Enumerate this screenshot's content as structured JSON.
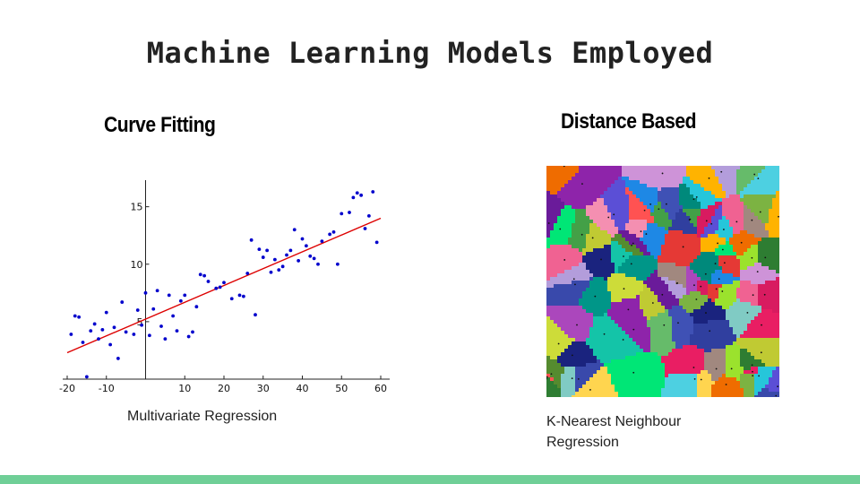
{
  "slide": {
    "title": "Machine Learning Models Employed",
    "left_heading": "Curve Fitting",
    "right_heading": "Distance Based",
    "left_caption": "Multivariate Regression",
    "right_caption": "K-Nearest Neighbour Regression",
    "footer_color": "#6fcf97"
  },
  "voronoi_image": {
    "style": "colorful voronoi tessellation with dot seeds"
  },
  "chart_data": {
    "type": "scatter",
    "xlim": [
      -20,
      60
    ],
    "ylim": [
      0,
      17
    ],
    "xticks": [
      -20,
      -10,
      10,
      20,
      30,
      40,
      50,
      60
    ],
    "yticks": [
      5,
      10,
      15
    ],
    "point_color": "#0000cc",
    "line_color": "#dd0000",
    "points": [
      [
        -19,
        3.9
      ],
      [
        -18,
        5.5
      ],
      [
        -17,
        5.4
      ],
      [
        -16,
        3.2
      ],
      [
        -15,
        0.2
      ],
      [
        -14,
        4.2
      ],
      [
        -13,
        4.8
      ],
      [
        -12,
        3.5
      ],
      [
        -11,
        4.3
      ],
      [
        -10,
        5.8
      ],
      [
        -9,
        3.0
      ],
      [
        -8,
        4.5
      ],
      [
        -7,
        1.8
      ],
      [
        -6,
        6.7
      ],
      [
        -5,
        4.1
      ],
      [
        -3,
        3.9
      ],
      [
        -2,
        6.0
      ],
      [
        -1,
        4.7
      ],
      [
        0,
        7.5
      ],
      [
        1,
        3.8
      ],
      [
        2,
        6.1
      ],
      [
        3,
        7.7
      ],
      [
        4,
        4.6
      ],
      [
        5,
        3.5
      ],
      [
        6,
        7.3
      ],
      [
        7,
        5.5
      ],
      [
        8,
        4.2
      ],
      [
        9,
        6.8
      ],
      [
        10,
        7.3
      ],
      [
        11,
        3.7
      ],
      [
        12,
        4.1
      ],
      [
        13,
        6.3
      ],
      [
        14,
        9.1
      ],
      [
        15,
        9.0
      ],
      [
        16,
        8.5
      ],
      [
        18,
        7.9
      ],
      [
        19,
        8.0
      ],
      [
        20,
        8.4
      ],
      [
        22,
        7.0
      ],
      [
        24,
        7.3
      ],
      [
        25,
        7.2
      ],
      [
        26,
        9.2
      ],
      [
        27,
        12.1
      ],
      [
        28,
        5.6
      ],
      [
        29,
        11.3
      ],
      [
        30,
        10.6
      ],
      [
        31,
        11.2
      ],
      [
        32,
        9.3
      ],
      [
        33,
        10.4
      ],
      [
        34,
        9.5
      ],
      [
        35,
        9.8
      ],
      [
        36,
        10.8
      ],
      [
        37,
        11.2
      ],
      [
        38,
        13.0
      ],
      [
        39,
        10.3
      ],
      [
        40,
        12.2
      ],
      [
        41,
        11.6
      ],
      [
        42,
        10.7
      ],
      [
        43,
        10.5
      ],
      [
        44,
        10.0
      ],
      [
        45,
        12.0
      ],
      [
        47,
        12.6
      ],
      [
        48,
        12.8
      ],
      [
        49,
        10.0
      ],
      [
        50,
        14.4
      ],
      [
        52,
        14.5
      ],
      [
        53,
        15.8
      ],
      [
        54,
        16.2
      ],
      [
        55,
        16.0
      ],
      [
        56,
        13.1
      ],
      [
        57,
        14.2
      ],
      [
        58,
        16.3
      ],
      [
        59,
        11.9
      ]
    ],
    "fit_line": {
      "x": [
        -20,
        60
      ],
      "y": [
        2.3,
        14.0
      ]
    }
  }
}
